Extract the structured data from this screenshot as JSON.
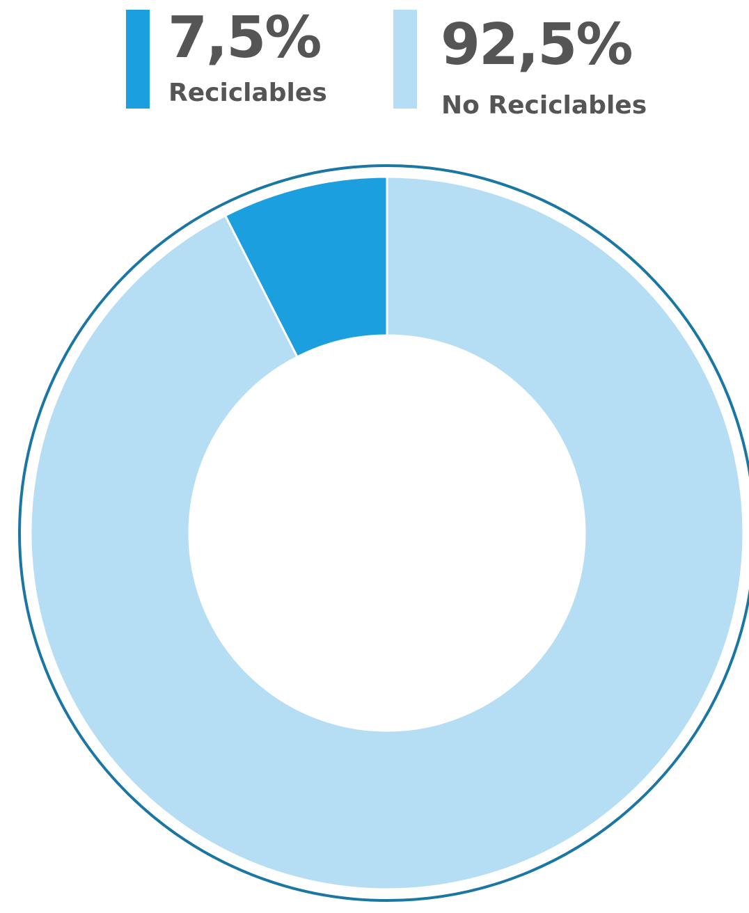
{
  "chart_data": {
    "type": "pie",
    "donut": true,
    "categories": [
      "Reciclables",
      "No Reciclables"
    ],
    "values": [
      7.5,
      92.5
    ],
    "value_labels": [
      "7,5%",
      "92,5%"
    ],
    "colors": [
      "#1c9fdf",
      "#b5ddf3"
    ],
    "legend_placement": "top",
    "outer_ring_color": "#1a77a3",
    "title": ""
  },
  "legend": {
    "items": [
      {
        "value": "7,5%",
        "label": "Reciclables",
        "color": "#1c9fdf"
      },
      {
        "value": "92,5%",
        "label": "No Reciclables",
        "color": "#b5ddf3"
      }
    ]
  }
}
